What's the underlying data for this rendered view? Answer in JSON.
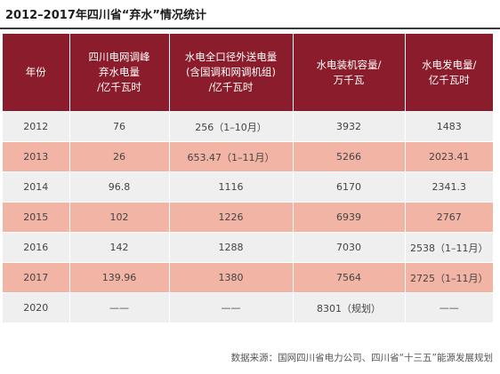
{
  "title": "2012–2017年四川省“弃水”情况统计",
  "table": {
    "headers": [
      [
        "年份"
      ],
      [
        "四川电网调峰",
        "弃水电量",
        "/亿千瓦时"
      ],
      [
        "水电全口径外送电量",
        "(含国调和网调机组)",
        "/亿千瓦时"
      ],
      [
        "水电装机容量/",
        "万千瓦"
      ],
      [
        "水电发电量/",
        "亿千瓦时"
      ]
    ],
    "rows": [
      [
        "2012",
        "76",
        "256（1–10月）",
        "3932",
        "1483"
      ],
      [
        "2013",
        "26",
        "653.47（1–11月）",
        "5266",
        "2023.41"
      ],
      [
        "2014",
        "96.8",
        "1116",
        "6170",
        "2341.3"
      ],
      [
        "2015",
        "102",
        "1226",
        "6939",
        "2767"
      ],
      [
        "2016",
        "142",
        "1288",
        "7030",
        "2538（1–11月）"
      ],
      [
        "2017",
        "139.96",
        "1380",
        "7564",
        "2725（1–11月）"
      ],
      [
        "2020",
        "——",
        "——",
        "8301（规划）",
        "——"
      ]
    ]
  },
  "source": "数据来源：国网四川省电力公司、四川省“十三五”能源发展规划",
  "colors": {
    "header_bg": "#8b1c2b",
    "row_gray": "#efefef",
    "row_pink": "#f2b4a5"
  }
}
